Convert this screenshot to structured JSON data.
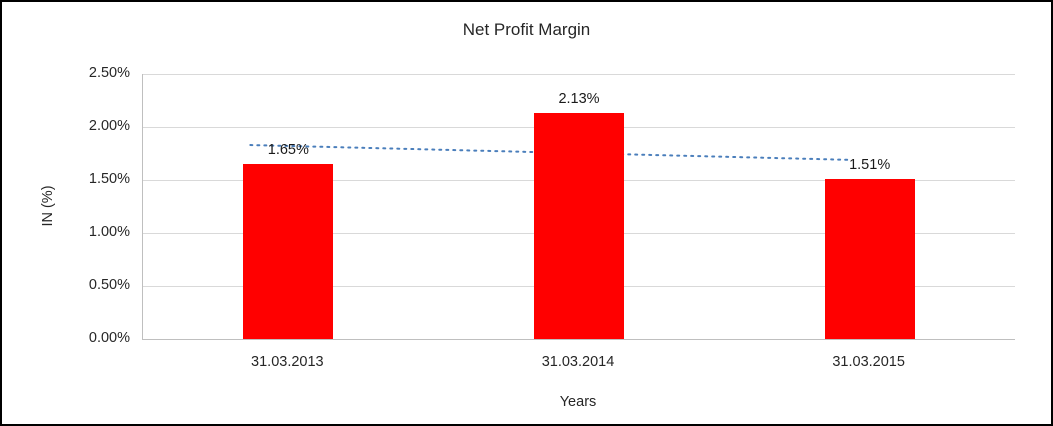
{
  "chart_data": {
    "type": "bar",
    "title": "Net Profit Margin",
    "categories": [
      "31.03.2013",
      "31.03.2014",
      "31.03.2015"
    ],
    "values": [
      1.65,
      2.13,
      1.51
    ],
    "data_labels": [
      "1.65%",
      "2.13%",
      "1.51%"
    ],
    "xlabel": "Years",
    "ylabel": "IN (%)",
    "ylim": [
      0,
      2.5
    ],
    "ytick_step": 0.5,
    "ytick_labels": [
      "0.00%",
      "0.50%",
      "1.00%",
      "1.50%",
      "2.00%",
      "2.50%"
    ],
    "bar_color": "#FF0000",
    "gridline_color": "#d9d9d9",
    "grid": true,
    "legend": false,
    "trendline": {
      "type": "linear",
      "style": "dotted",
      "color": "#4A7EBB",
      "start_value": 1.83,
      "end_value": 1.69
    }
  }
}
